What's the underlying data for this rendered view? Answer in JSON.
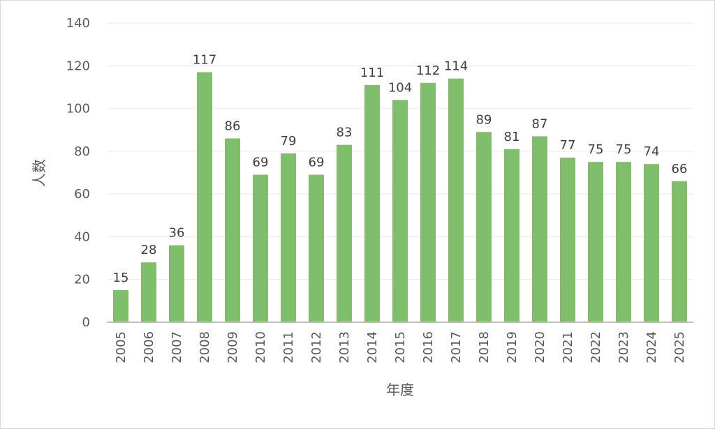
{
  "chart_data": {
    "type": "bar",
    "title": "",
    "xlabel": "年度",
    "ylabel": "人数",
    "categories": [
      "2005",
      "2006",
      "2007",
      "2008",
      "2009",
      "2010",
      "2011",
      "2012",
      "2013",
      "2014",
      "2015",
      "2016",
      "2017",
      "2018",
      "2019",
      "2020",
      "2021",
      "2022",
      "2023",
      "2024",
      "2025"
    ],
    "values": [
      15,
      28,
      36,
      117,
      86,
      69,
      79,
      69,
      83,
      111,
      104,
      112,
      114,
      89,
      81,
      87,
      77,
      75,
      75,
      74,
      66
    ],
    "ylim": [
      0,
      140
    ],
    "yticks": [
      "0",
      "20",
      "40",
      "60",
      "80",
      "100",
      "120",
      "140"
    ],
    "grid": true,
    "legend": "none",
    "bar_color": "#7fbf69",
    "gridline_color": "#efefef",
    "axis_color": "#bfbfbf"
  }
}
